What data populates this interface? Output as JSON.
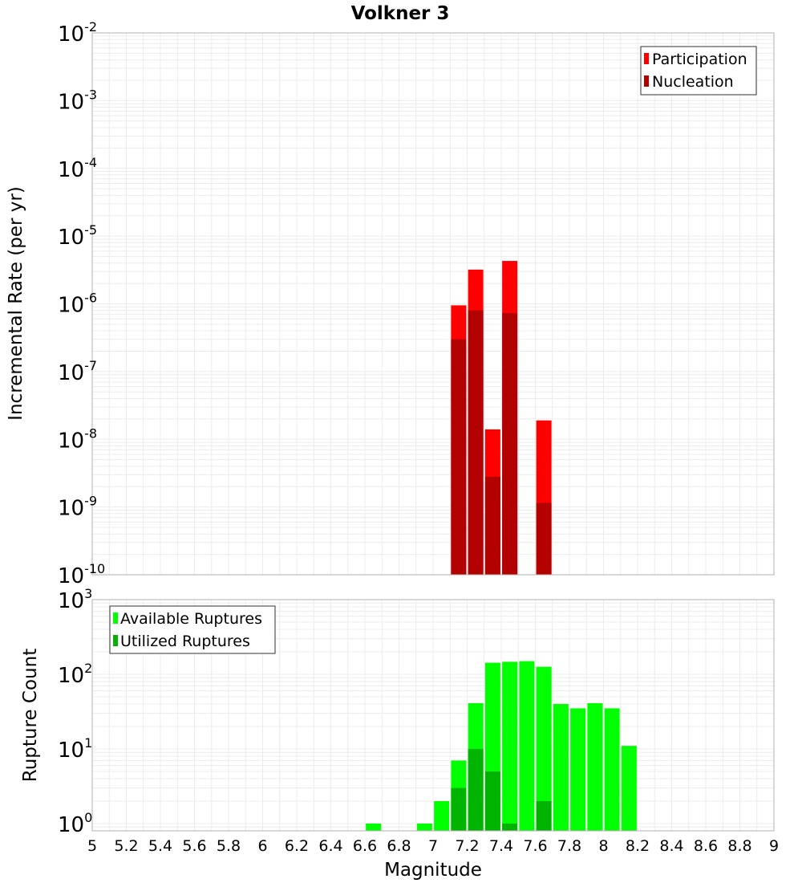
{
  "chart_data": [
    {
      "type": "bar",
      "title": "Volkner 3",
      "xlabel": "Magnitude",
      "ylabel": "Incremental Rate (per yr)",
      "yscale": "log",
      "ylim": [
        1e-10,
        0.01
      ],
      "xlim": [
        5,
        9
      ],
      "grid": true,
      "legend_position": "top-right",
      "x": [
        7.15,
        7.25,
        7.35,
        7.45,
        7.65
      ],
      "series": [
        {
          "name": "Participation",
          "color": "#ff0000",
          "values": [
            9.5e-07,
            3.2e-06,
            1.4e-08,
            4.3e-06,
            1.9e-08
          ]
        },
        {
          "name": "Nucleation",
          "color": "#b30000",
          "values": [
            3e-07,
            8e-07,
            2.8e-09,
            7.3e-07,
            1.15e-09
          ]
        }
      ],
      "y_tick_exponents": [
        "-2",
        "-3",
        "-4",
        "-5",
        "-6",
        "-7",
        "-8",
        "-9",
        "-10"
      ]
    },
    {
      "type": "bar",
      "xlabel": "Magnitude",
      "ylabel": "Rupture Count",
      "yscale": "log",
      "ylim": [
        0.8,
        1000
      ],
      "xlim": [
        5,
        9
      ],
      "grid": true,
      "legend_position": "top-left",
      "x": [
        6.65,
        6.95,
        7.05,
        7.15,
        7.25,
        7.35,
        7.45,
        7.55,
        7.65,
        7.75,
        7.85,
        7.95,
        8.05,
        8.15
      ],
      "series": [
        {
          "name": "Available Ruptures",
          "color": "#00ff00",
          "values": [
            1,
            1,
            2,
            7,
            41,
            143,
            147,
            150,
            126,
            40,
            35,
            41,
            35,
            11
          ]
        },
        {
          "name": "Utilized Ruptures",
          "color": "#00b300",
          "values": [
            null,
            null,
            null,
            3,
            10,
            5,
            1,
            null,
            2,
            null,
            null,
            null,
            null,
            null
          ]
        }
      ],
      "y_tick_exponents": [
        "3",
        "2",
        "1",
        "0"
      ],
      "x_tick_labels": [
        "5",
        "5.2",
        "5.4",
        "5.6",
        "5.8",
        "6",
        "6.2",
        "6.4",
        "6.6",
        "6.8",
        "7",
        "7.2",
        "7.4",
        "7.6",
        "7.8",
        "8",
        "8.2",
        "8.4",
        "8.6",
        "8.8",
        "9"
      ]
    }
  ],
  "colors": {
    "grid": "#ececec",
    "frame": "#b0b0b0",
    "text": "#000000"
  }
}
